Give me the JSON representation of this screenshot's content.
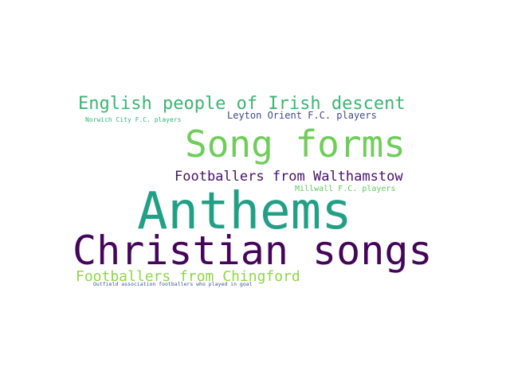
{
  "word_cloud": {
    "words": [
      {
        "text": "English people of Irish descent",
        "color": "#3cb572"
      },
      {
        "text": "Norwich City F.C. players",
        "color": "#2db57c"
      },
      {
        "text": "Leyton Orient F.C. players",
        "color": "#3e4a89"
      },
      {
        "text": "Song forms",
        "color": "#6fcd5a"
      },
      {
        "text": "Footballers from Walthamstow",
        "color": "#46106b"
      },
      {
        "text": "Millwall F.C. players",
        "color": "#5fc962"
      },
      {
        "text": "Anthems",
        "color": "#21a086"
      },
      {
        "text": "Christian songs",
        "color": "#44055a"
      },
      {
        "text": "Footballers from Chingford",
        "color": "#8fd744"
      },
      {
        "text": "Outfield association footballers who played in goal",
        "color": "#3b528b"
      }
    ]
  }
}
